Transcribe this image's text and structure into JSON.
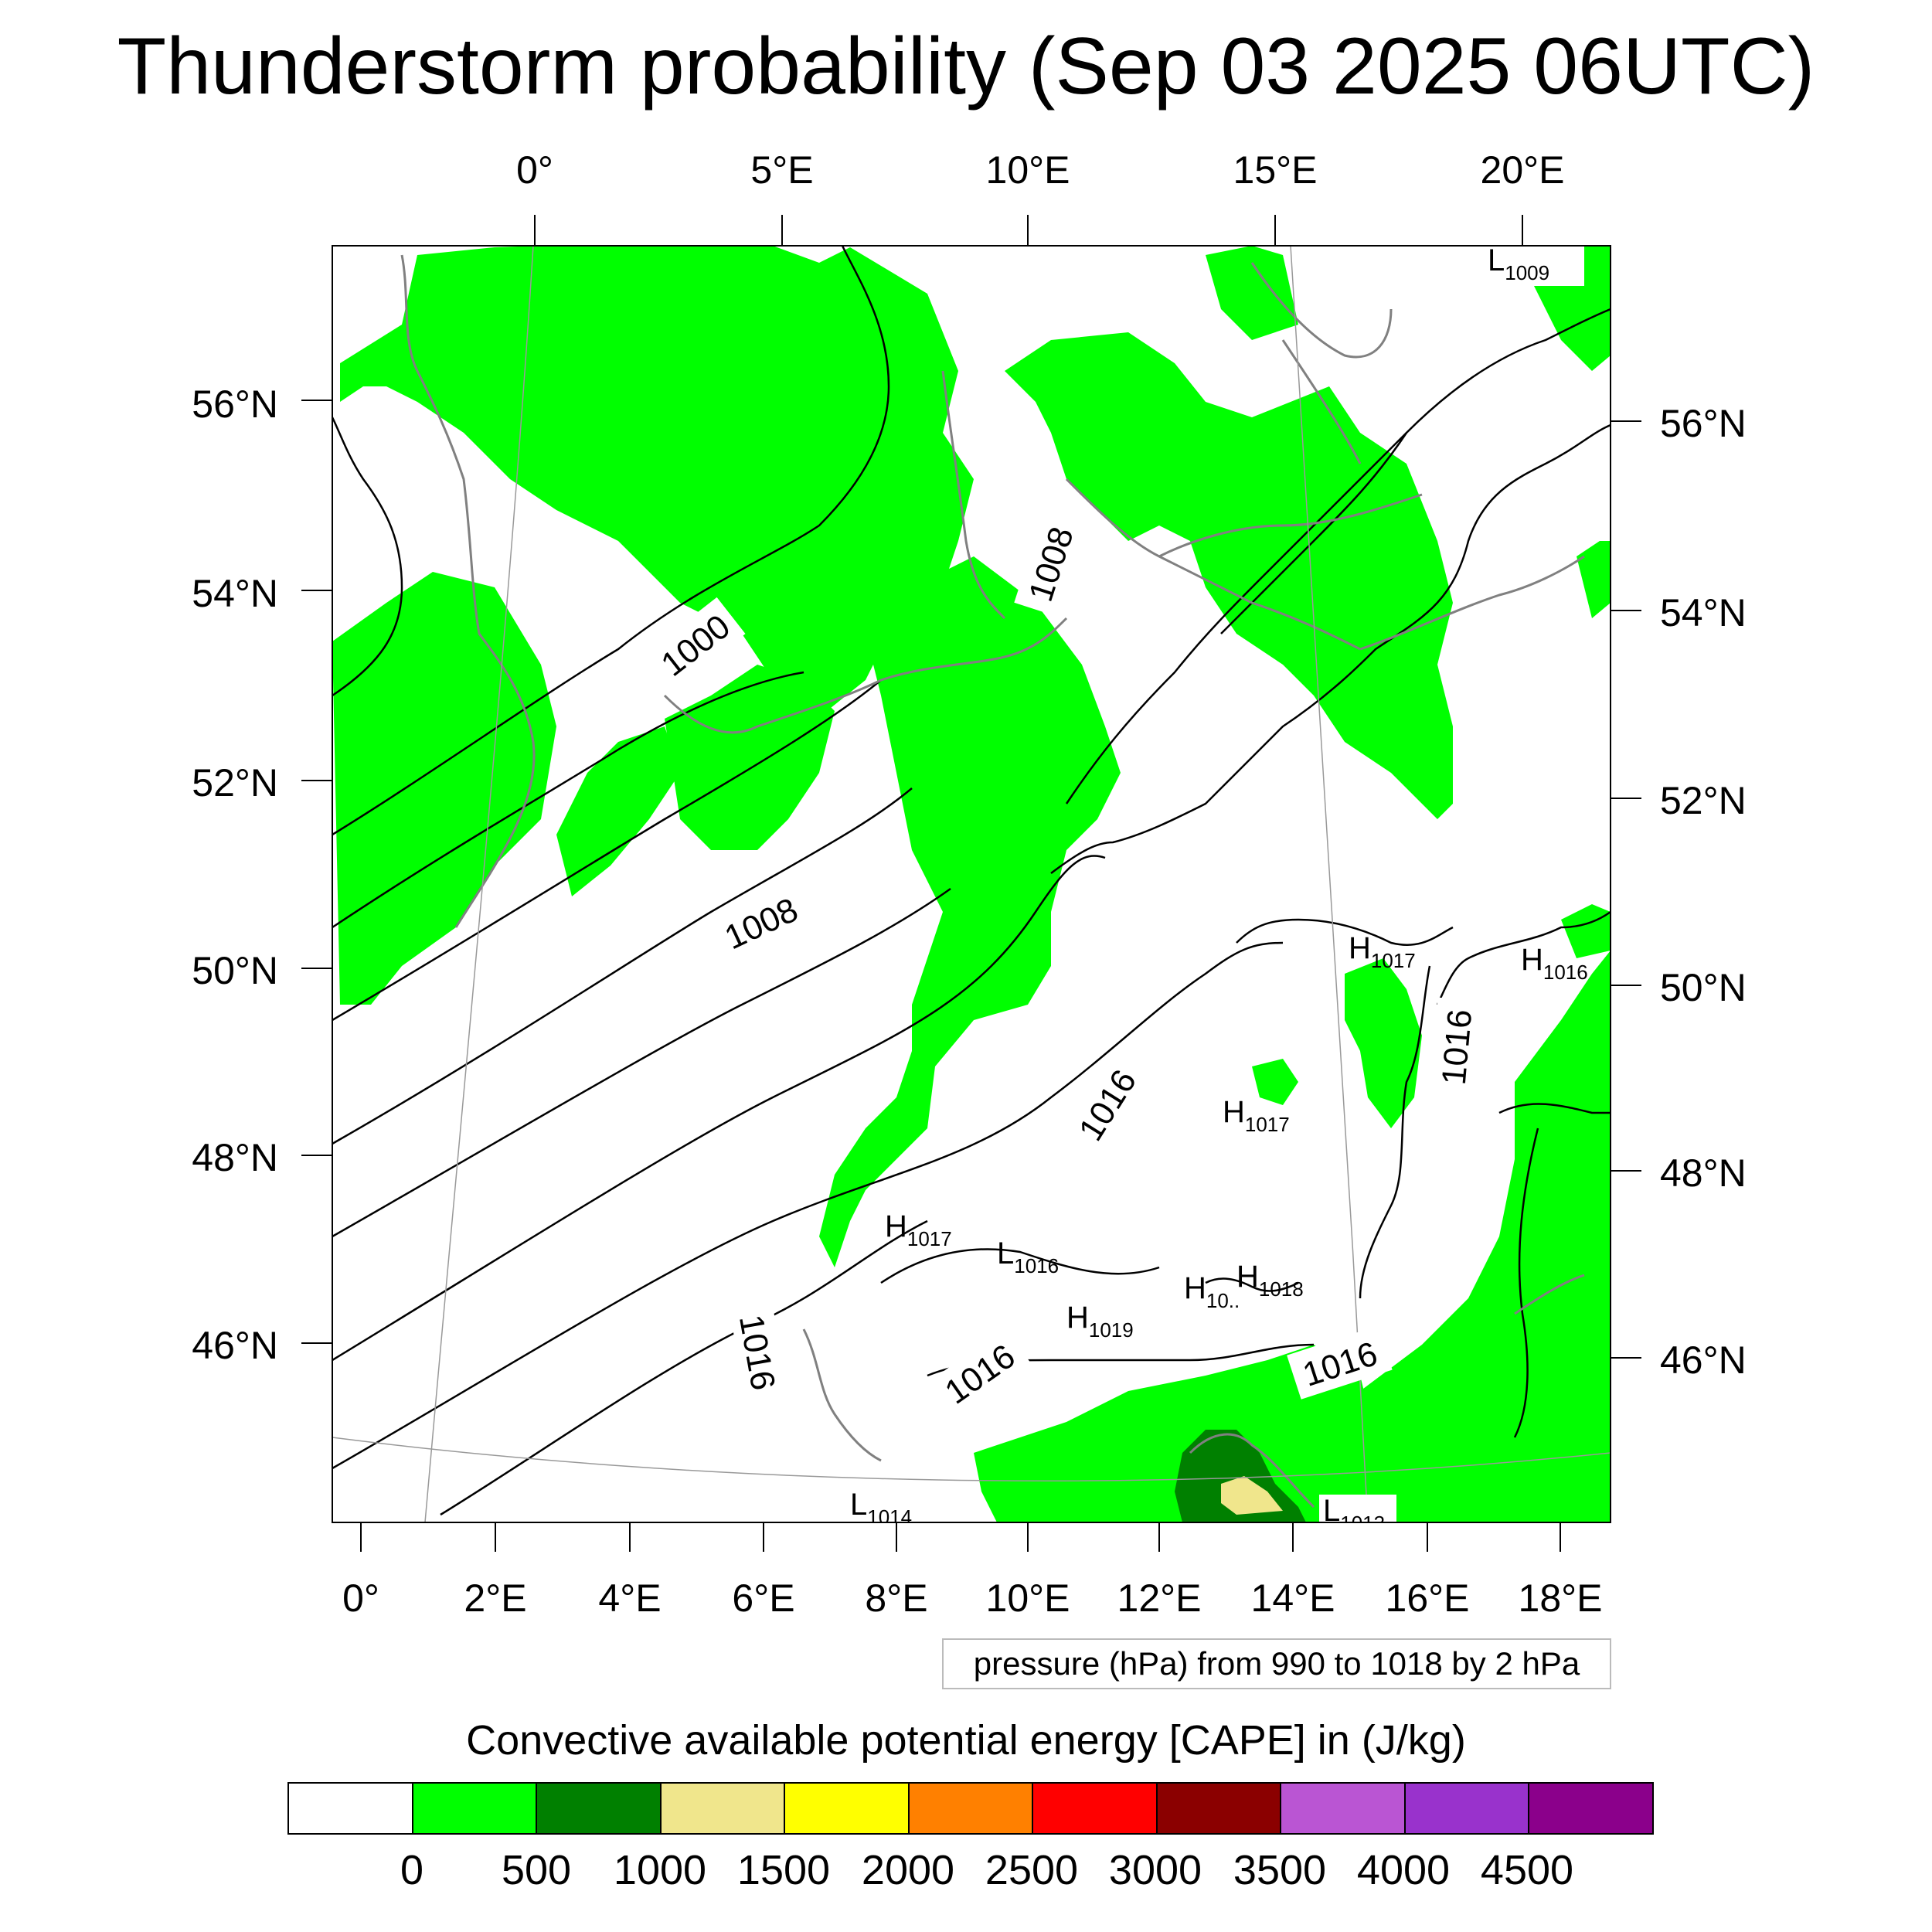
{
  "title": "Thunderstorm probability (Sep 03 2025 06UTC)",
  "axes": {
    "top_lon": [
      "0°",
      "5°E",
      "10°E",
      "15°E",
      "20°E"
    ],
    "bottom_lon": [
      "0°",
      "2°E",
      "4°E",
      "6°E",
      "8°E",
      "10°E",
      "12°E",
      "14°E",
      "16°E",
      "18°E"
    ],
    "left_lat": [
      "56°N",
      "54°N",
      "52°N",
      "50°N",
      "48°N",
      "46°N"
    ],
    "right_lat": [
      "56°N",
      "54°N",
      "52°N",
      "50°N",
      "48°N",
      "46°N"
    ]
  },
  "pressure_labels": {
    "l1000": "1000",
    "l1008a": "1008",
    "l1008b": "1008",
    "l1016a": "1016",
    "l1016b": "1016",
    "l1016c": "1016",
    "l1016d": "1016",
    "l1016e": "1016"
  },
  "pressure_centers": [
    {
      "type": "L",
      "value": "1009"
    },
    {
      "type": "H",
      "value": "1017"
    },
    {
      "type": "H",
      "value": "1016"
    },
    {
      "type": "H",
      "value": "1017"
    },
    {
      "type": "H",
      "value": "1017"
    },
    {
      "type": "L",
      "value": "1016"
    },
    {
      "type": "H",
      "value": "10.."
    },
    {
      "type": "H",
      "value": "1018"
    },
    {
      "type": "H",
      "value": "1019"
    },
    {
      "type": "L",
      "value": "1014"
    },
    {
      "type": "L",
      "value": "1013"
    }
  ],
  "info_box": "pressure (hPa) from 990 to 1018 by 2 hPa",
  "legend": {
    "title": "Convective available potential energy [CAPE] in (J/kg)",
    "colors": [
      "#ffffff",
      "#00ff00",
      "#008000",
      "#f0e68c",
      "#ffff00",
      "#ff8000",
      "#ff0000",
      "#8b0000",
      "#ba55d3",
      "#9932cc",
      "#8b008b"
    ],
    "labels": [
      "0",
      "500",
      "1000",
      "1500",
      "2000",
      "2500",
      "3000",
      "3500",
      "4000",
      "4500"
    ]
  },
  "colors": {
    "cape_0_500": "#00ff00",
    "cape_500_1000": "#008000",
    "cape_1000_1500": "#f0e68c",
    "coastline": "#808080",
    "isobar": "#000000"
  }
}
